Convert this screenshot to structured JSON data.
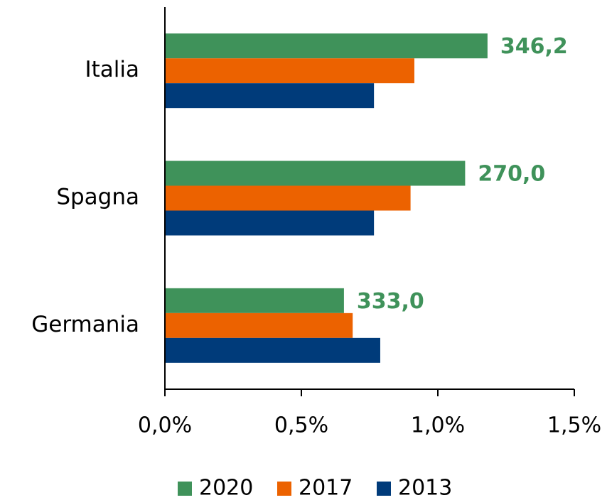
{
  "chart_data": {
    "type": "bar",
    "orientation": "horizontal",
    "categories": [
      "Italia",
      "Spagna",
      "Germania"
    ],
    "series": [
      {
        "name": "2020",
        "color": "#3f925a",
        "values": [
          1.182,
          1.1,
          0.656
        ]
      },
      {
        "name": "2017",
        "color": "#ec6200",
        "values": [
          0.914,
          0.9,
          0.688
        ]
      },
      {
        "name": "2013",
        "color": "#003b7a",
        "values": [
          0.766,
          0.766,
          0.789
        ]
      }
    ],
    "annotations": [
      "346,2",
      "270,0",
      "333,0"
    ],
    "xlim": [
      0,
      1.5
    ],
    "xticks": [
      {
        "value": 0,
        "label": "0,0%"
      },
      {
        "value": 0.5,
        "label": "0,5%"
      },
      {
        "value": 1.0,
        "label": "1,0%"
      },
      {
        "value": 1.5,
        "label": "1,5%"
      }
    ],
    "grid": false,
    "legend": "bottom"
  }
}
